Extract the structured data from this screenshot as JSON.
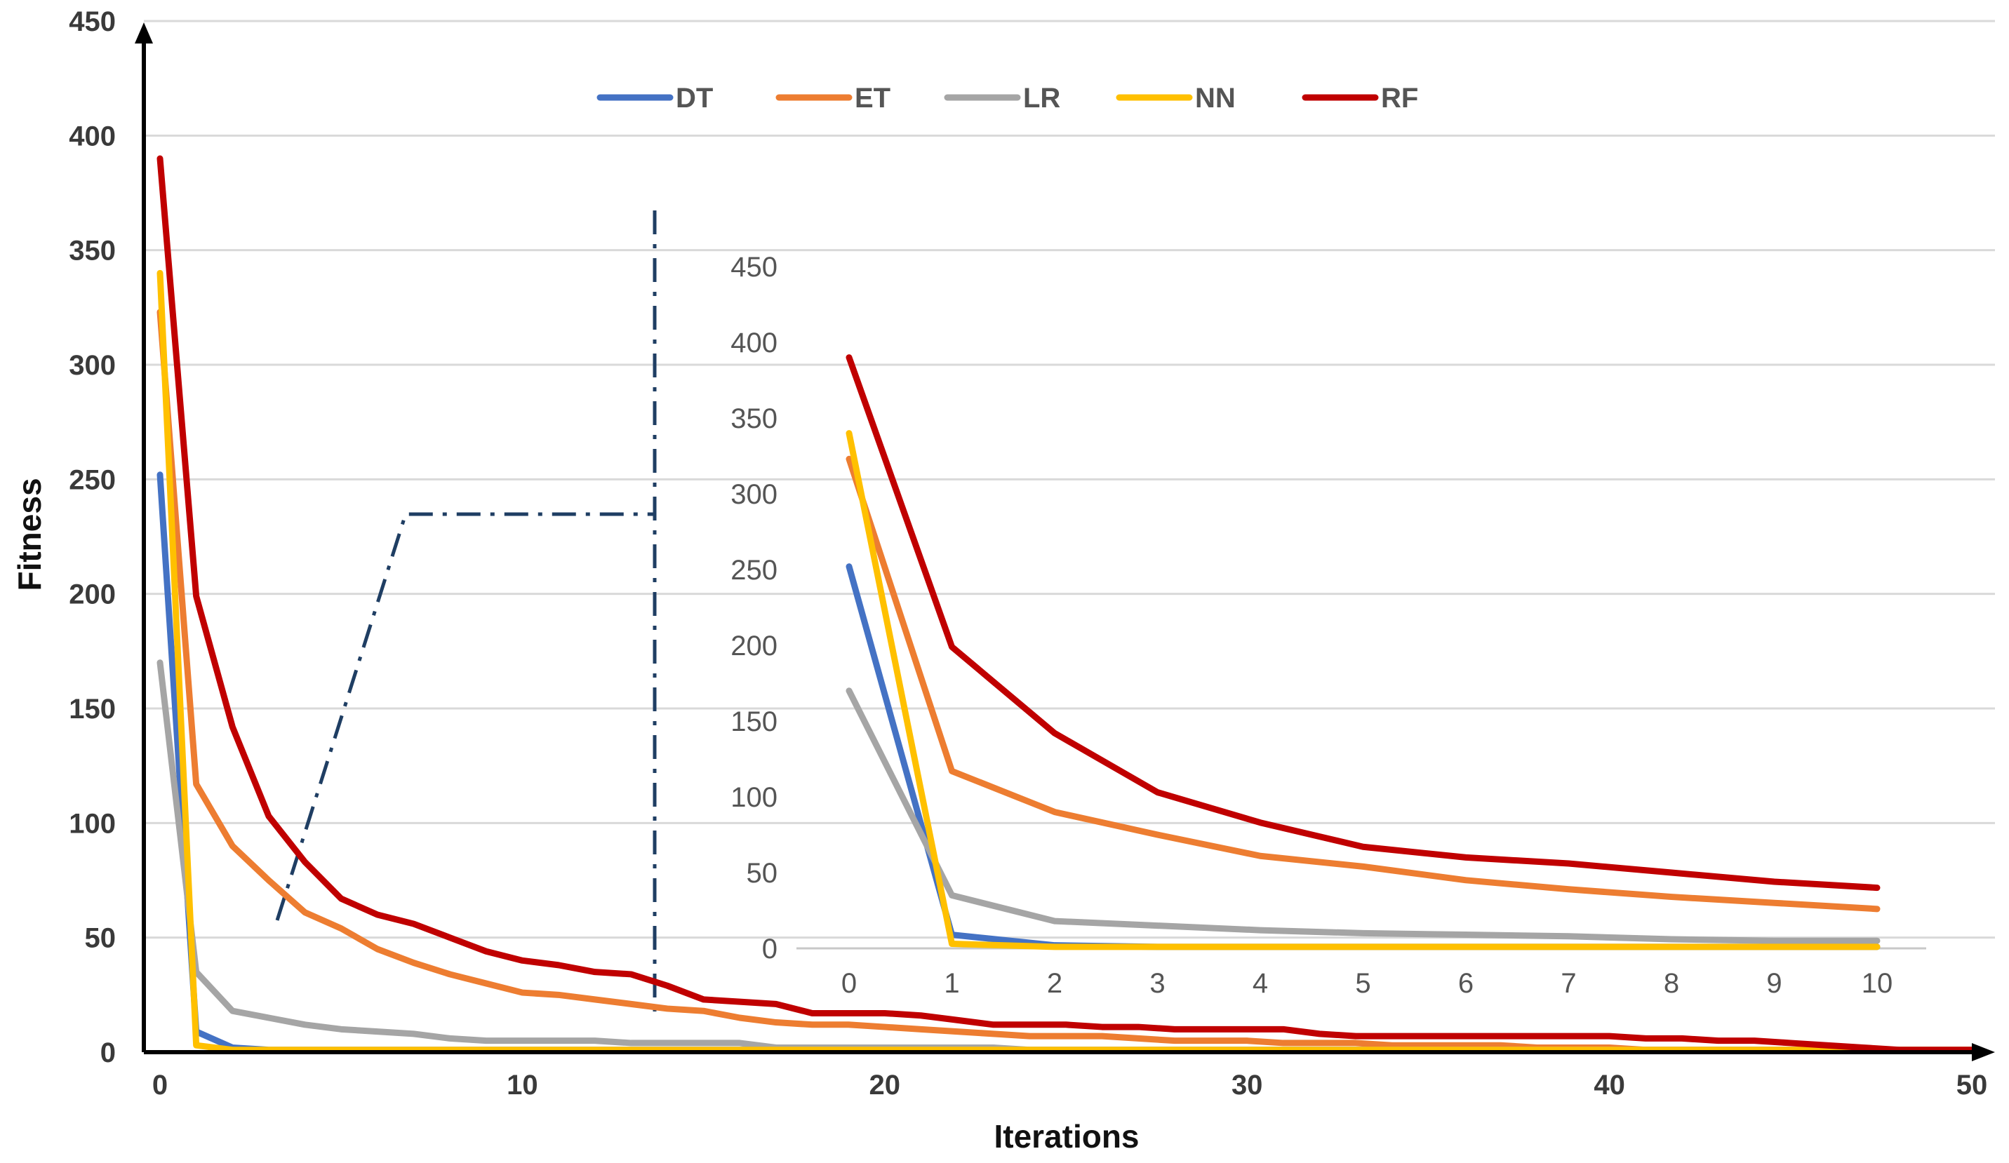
{
  "chart_data": [
    {
      "type": "line",
      "role": "main",
      "xlabel": "Iterations",
      "ylabel": "Fitness",
      "xlim": [
        0,
        50
      ],
      "ylim": [
        0,
        450
      ],
      "xticks": [
        0,
        10,
        20,
        30,
        40,
        50
      ],
      "yticks": [
        0,
        50,
        100,
        150,
        200,
        250,
        300,
        350,
        400,
        450
      ],
      "grid": "horizontal",
      "legend_position": "top-center",
      "x": [
        0,
        1,
        2,
        3,
        4,
        5,
        6,
        7,
        8,
        9,
        10,
        11,
        12,
        13,
        14,
        15,
        16,
        17,
        18,
        19,
        20,
        21,
        22,
        23,
        24,
        25,
        26,
        27,
        28,
        29,
        30,
        31,
        32,
        33,
        34,
        35,
        36,
        37,
        38,
        39,
        40,
        41,
        42,
        43,
        44,
        45,
        46,
        47,
        48,
        49,
        50
      ],
      "series": [
        {
          "name": "DT",
          "color": "#4472C4",
          "values": [
            252,
            9,
            2,
            1,
            1,
            1,
            1,
            1,
            1,
            1,
            1,
            1,
            1,
            1,
            1,
            1,
            1,
            1,
            1,
            1,
            1,
            1,
            1,
            1,
            1,
            1,
            1,
            1,
            1,
            1,
            1,
            1,
            1,
            1,
            1,
            1,
            1,
            1,
            1,
            1,
            1,
            1,
            1,
            1,
            1,
            1,
            1,
            1,
            1,
            1,
            1
          ]
        },
        {
          "name": "ET",
          "color": "#ED7D31",
          "values": [
            323,
            117,
            90,
            75,
            61,
            54,
            45,
            39,
            34,
            30,
            26,
            25,
            23,
            21,
            19,
            18,
            15,
            13,
            12,
            12,
            11,
            10,
            9,
            8,
            7,
            7,
            7,
            6,
            5,
            5,
            5,
            4,
            4,
            4,
            3,
            3,
            3,
            3,
            2,
            2,
            2,
            1,
            1,
            1,
            1,
            1,
            1,
            1,
            1,
            1,
            1
          ]
        },
        {
          "name": "LR",
          "color": "#A5A5A5",
          "values": [
            170,
            35,
            18,
            15,
            12,
            10,
            9,
            8,
            6,
            5,
            5,
            5,
            5,
            4,
            4,
            4,
            4,
            2,
            2,
            2,
            2,
            2,
            2,
            2,
            1,
            1,
            1,
            1,
            1,
            1,
            1,
            1,
            1,
            1,
            1,
            1,
            1,
            1,
            1,
            1,
            1,
            1,
            1,
            1,
            1,
            1,
            1,
            1,
            1,
            1,
            1
          ]
        },
        {
          "name": "NN",
          "color": "#FFC000",
          "values": [
            340,
            3,
            1,
            1,
            1,
            1,
            1,
            1,
            1,
            1,
            1,
            1,
            1,
            1,
            1,
            1,
            1,
            1,
            1,
            1,
            1,
            1,
            1,
            1,
            1,
            1,
            1,
            1,
            1,
            1,
            1,
            1,
            1,
            1,
            1,
            1,
            1,
            1,
            1,
            1,
            1,
            1,
            1,
            1,
            1,
            1,
            1,
            1,
            1,
            1,
            1
          ]
        },
        {
          "name": "RF",
          "color": "#C00000",
          "values": [
            390,
            199,
            142,
            103,
            83,
            67,
            60,
            56,
            50,
            44,
            40,
            38,
            35,
            34,
            29,
            23,
            22,
            21,
            17,
            17,
            17,
            16,
            14,
            12,
            12,
            12,
            11,
            11,
            10,
            10,
            10,
            10,
            8,
            7,
            7,
            7,
            7,
            7,
            7,
            7,
            7,
            6,
            6,
            5,
            5,
            4,
            3,
            2,
            1,
            1,
            1
          ]
        }
      ]
    },
    {
      "type": "line",
      "role": "inset",
      "xlabel": "",
      "ylabel": "",
      "xlim": [
        0,
        10
      ],
      "ylim": [
        0,
        450
      ],
      "xticks": [
        0,
        1,
        2,
        3,
        4,
        5,
        6,
        7,
        8,
        9,
        10
      ],
      "yticks": [
        0,
        50,
        100,
        150,
        200,
        250,
        300,
        350,
        400,
        450
      ],
      "x": [
        0,
        1,
        2,
        3,
        4,
        5,
        6,
        7,
        8,
        9,
        10
      ],
      "series": [
        {
          "name": "DT",
          "color": "#4472C4",
          "values": [
            252,
            9,
            2,
            1,
            1,
            1,
            1,
            1,
            1,
            1,
            1
          ]
        },
        {
          "name": "ET",
          "color": "#ED7D31",
          "values": [
            323,
            117,
            90,
            75,
            61,
            54,
            45,
            39,
            34,
            30,
            26
          ]
        },
        {
          "name": "LR",
          "color": "#A5A5A5",
          "values": [
            170,
            35,
            18,
            15,
            12,
            10,
            9,
            8,
            6,
            5,
            5
          ]
        },
        {
          "name": "NN",
          "color": "#FFC000",
          "values": [
            340,
            3,
            1,
            1,
            1,
            1,
            1,
            1,
            1,
            1,
            1
          ]
        },
        {
          "name": "RF",
          "color": "#C00000",
          "values": [
            390,
            199,
            142,
            103,
            83,
            67,
            60,
            56,
            50,
            44,
            40
          ]
        }
      ]
    }
  ]
}
